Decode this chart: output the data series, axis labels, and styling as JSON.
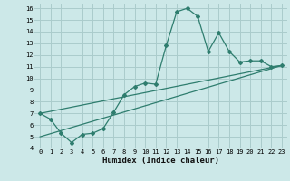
{
  "xlabel": "Humidex (Indice chaleur)",
  "bg_color": "#cce8e8",
  "grid_color": "#aacccc",
  "line_color": "#2e7d6e",
  "xlim": [
    -0.5,
    23.5
  ],
  "ylim": [
    4,
    16.4
  ],
  "xticks": [
    0,
    1,
    2,
    3,
    4,
    5,
    6,
    7,
    8,
    9,
    10,
    11,
    12,
    13,
    14,
    15,
    16,
    17,
    18,
    19,
    20,
    21,
    22,
    23
  ],
  "yticks": [
    4,
    5,
    6,
    7,
    8,
    9,
    10,
    11,
    12,
    13,
    14,
    15,
    16
  ],
  "line1_x": [
    0,
    1,
    2,
    3,
    4,
    5,
    6,
    7,
    8,
    9,
    10,
    11,
    12,
    13,
    14,
    15,
    16,
    17,
    18,
    19,
    20,
    21,
    22,
    23
  ],
  "line1_y": [
    7.0,
    6.5,
    5.3,
    4.5,
    5.2,
    5.3,
    5.7,
    7.1,
    8.6,
    9.3,
    9.6,
    9.5,
    12.8,
    15.7,
    16.0,
    15.3,
    12.3,
    13.9,
    12.3,
    11.4,
    11.5,
    11.5,
    11.0,
    11.1
  ],
  "line2_x": [
    0,
    23
  ],
  "line2_y": [
    7.0,
    11.1
  ],
  "line3_x": [
    0,
    23
  ],
  "line3_y": [
    5.0,
    11.1
  ],
  "tick_fontsize": 5.0,
  "xlabel_fontsize": 6.5
}
